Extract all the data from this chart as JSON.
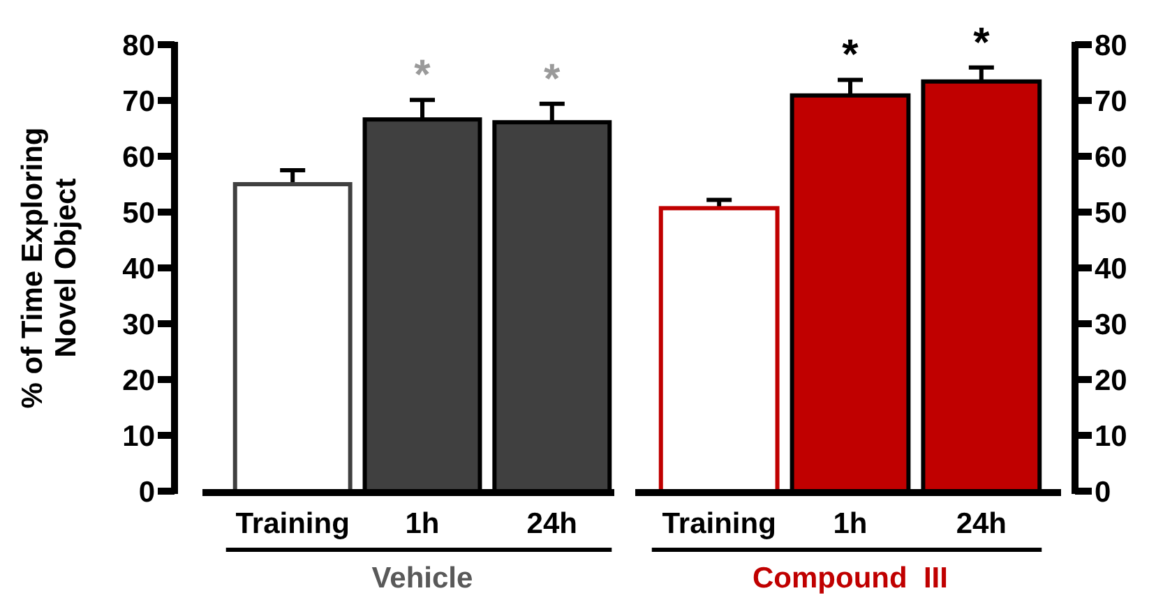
{
  "chart_data": [
    {
      "type": "bar",
      "categories": [
        "Training",
        "1h",
        "24h"
      ],
      "xlabel": "Vehicle",
      "ylabel": "% of Time Exploring Novel Object",
      "values": [
        55,
        66.6,
        66.1
      ],
      "errors": [
        2.5,
        3.5,
        3.3
      ],
      "colors": [
        "#ffffff",
        "#404040",
        "#404040"
      ],
      "ylim": [
        0,
        80
      ],
      "yticks": [
        0,
        10,
        20,
        30,
        40,
        50,
        60,
        70,
        80
      ],
      "annotations": [
        "*",
        "*"
      ]
    },
    {
      "type": "bar",
      "categories": [
        "Training",
        "1h",
        "24h"
      ],
      "xlabel": "Compound  III",
      "series": [
        {
          "axis": "y2",
          "values": [
            50.7,
            70.9,
            73.4
          ],
          "errors": [
            1.5,
            2.8,
            2.5
          ],
          "colors": [
            "#ffffff",
            "#c00000",
            "#c00000"
          ]
        }
      ],
      "y2lim": [
        0,
        80
      ],
      "y2ticks": [
        0,
        10,
        20,
        30,
        40,
        50,
        60,
        70,
        80
      ],
      "annotations": [
        "*",
        "*"
      ]
    }
  ]
}
